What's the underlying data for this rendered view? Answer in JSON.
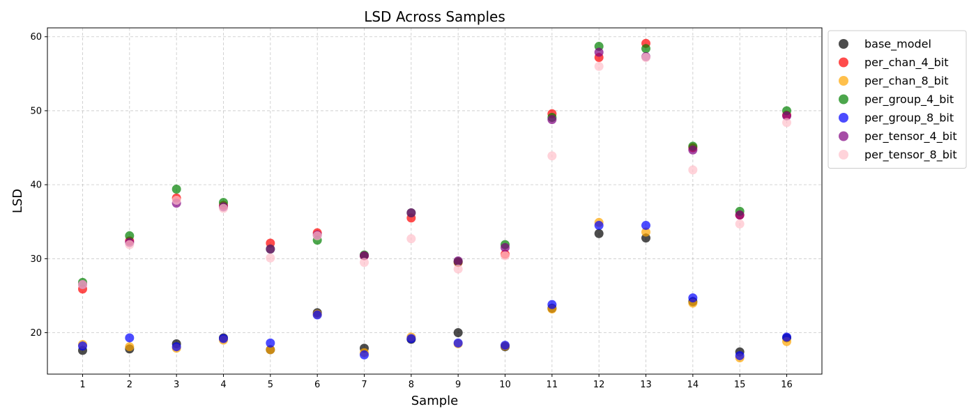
{
  "chart_data": {
    "type": "scatter",
    "title": "LSD Across Samples",
    "xlabel": "Sample",
    "ylabel": "LSD",
    "x": [
      1,
      2,
      3,
      4,
      5,
      6,
      7,
      8,
      9,
      10,
      11,
      12,
      13,
      14,
      15,
      16
    ],
    "xlim": [
      0.25,
      16.75
    ],
    "ylim": [
      14.4,
      61.2
    ],
    "yticks": [
      20,
      30,
      40,
      50,
      60
    ],
    "grid": true,
    "legend_position": "outside-top-right",
    "series": [
      {
        "name": "base_model",
        "color": "#000000",
        "values": [
          17.6,
          17.8,
          18.5,
          19.3,
          17.7,
          22.7,
          17.9,
          19.1,
          20.0,
          18.1,
          23.3,
          33.4,
          32.8,
          24.2,
          17.4,
          19.3
        ]
      },
      {
        "name": "per_chan_4_bit",
        "color": "#ff0000",
        "values": [
          25.9,
          32.4,
          38.2,
          37.2,
          32.1,
          33.5,
          30.4,
          35.5,
          29.5,
          30.6,
          49.6,
          57.2,
          59.1,
          45.0,
          35.9,
          49.4
        ]
      },
      {
        "name": "per_chan_8_bit",
        "color": "#ffa500",
        "values": [
          18.4,
          18.1,
          17.9,
          19.0,
          17.7,
          22.5,
          17.3,
          19.4,
          18.5,
          18.2,
          23.2,
          34.9,
          33.6,
          24.0,
          16.6,
          18.8
        ]
      },
      {
        "name": "per_group_4_bit",
        "color": "#008000",
        "values": [
          26.8,
          33.1,
          39.4,
          37.6,
          31.3,
          32.5,
          30.5,
          36.2,
          29.6,
          31.9,
          49.1,
          58.7,
          58.4,
          45.2,
          36.4,
          50.0
        ]
      },
      {
        "name": "per_group_8_bit",
        "color": "#0000ff",
        "values": [
          18.2,
          19.3,
          18.1,
          19.2,
          18.6,
          22.4,
          17.0,
          19.2,
          18.6,
          18.3,
          23.8,
          34.5,
          34.5,
          24.7,
          16.9,
          19.4
        ]
      },
      {
        "name": "per_tensor_4_bit",
        "color": "#800080",
        "values": [
          26.5,
          32.2,
          37.5,
          37.0,
          31.3,
          33.2,
          30.4,
          36.2,
          29.7,
          31.5,
          48.8,
          57.9,
          57.3,
          44.7,
          35.9,
          49.3
        ]
      },
      {
        "name": "per_tensor_8_bit",
        "color": "#ffc0cb",
        "values": [
          26.5,
          31.9,
          37.9,
          36.8,
          30.1,
          33.1,
          29.5,
          32.7,
          28.6,
          30.4,
          43.9,
          56.0,
          57.2,
          42.0,
          34.7,
          48.4
        ]
      }
    ]
  }
}
